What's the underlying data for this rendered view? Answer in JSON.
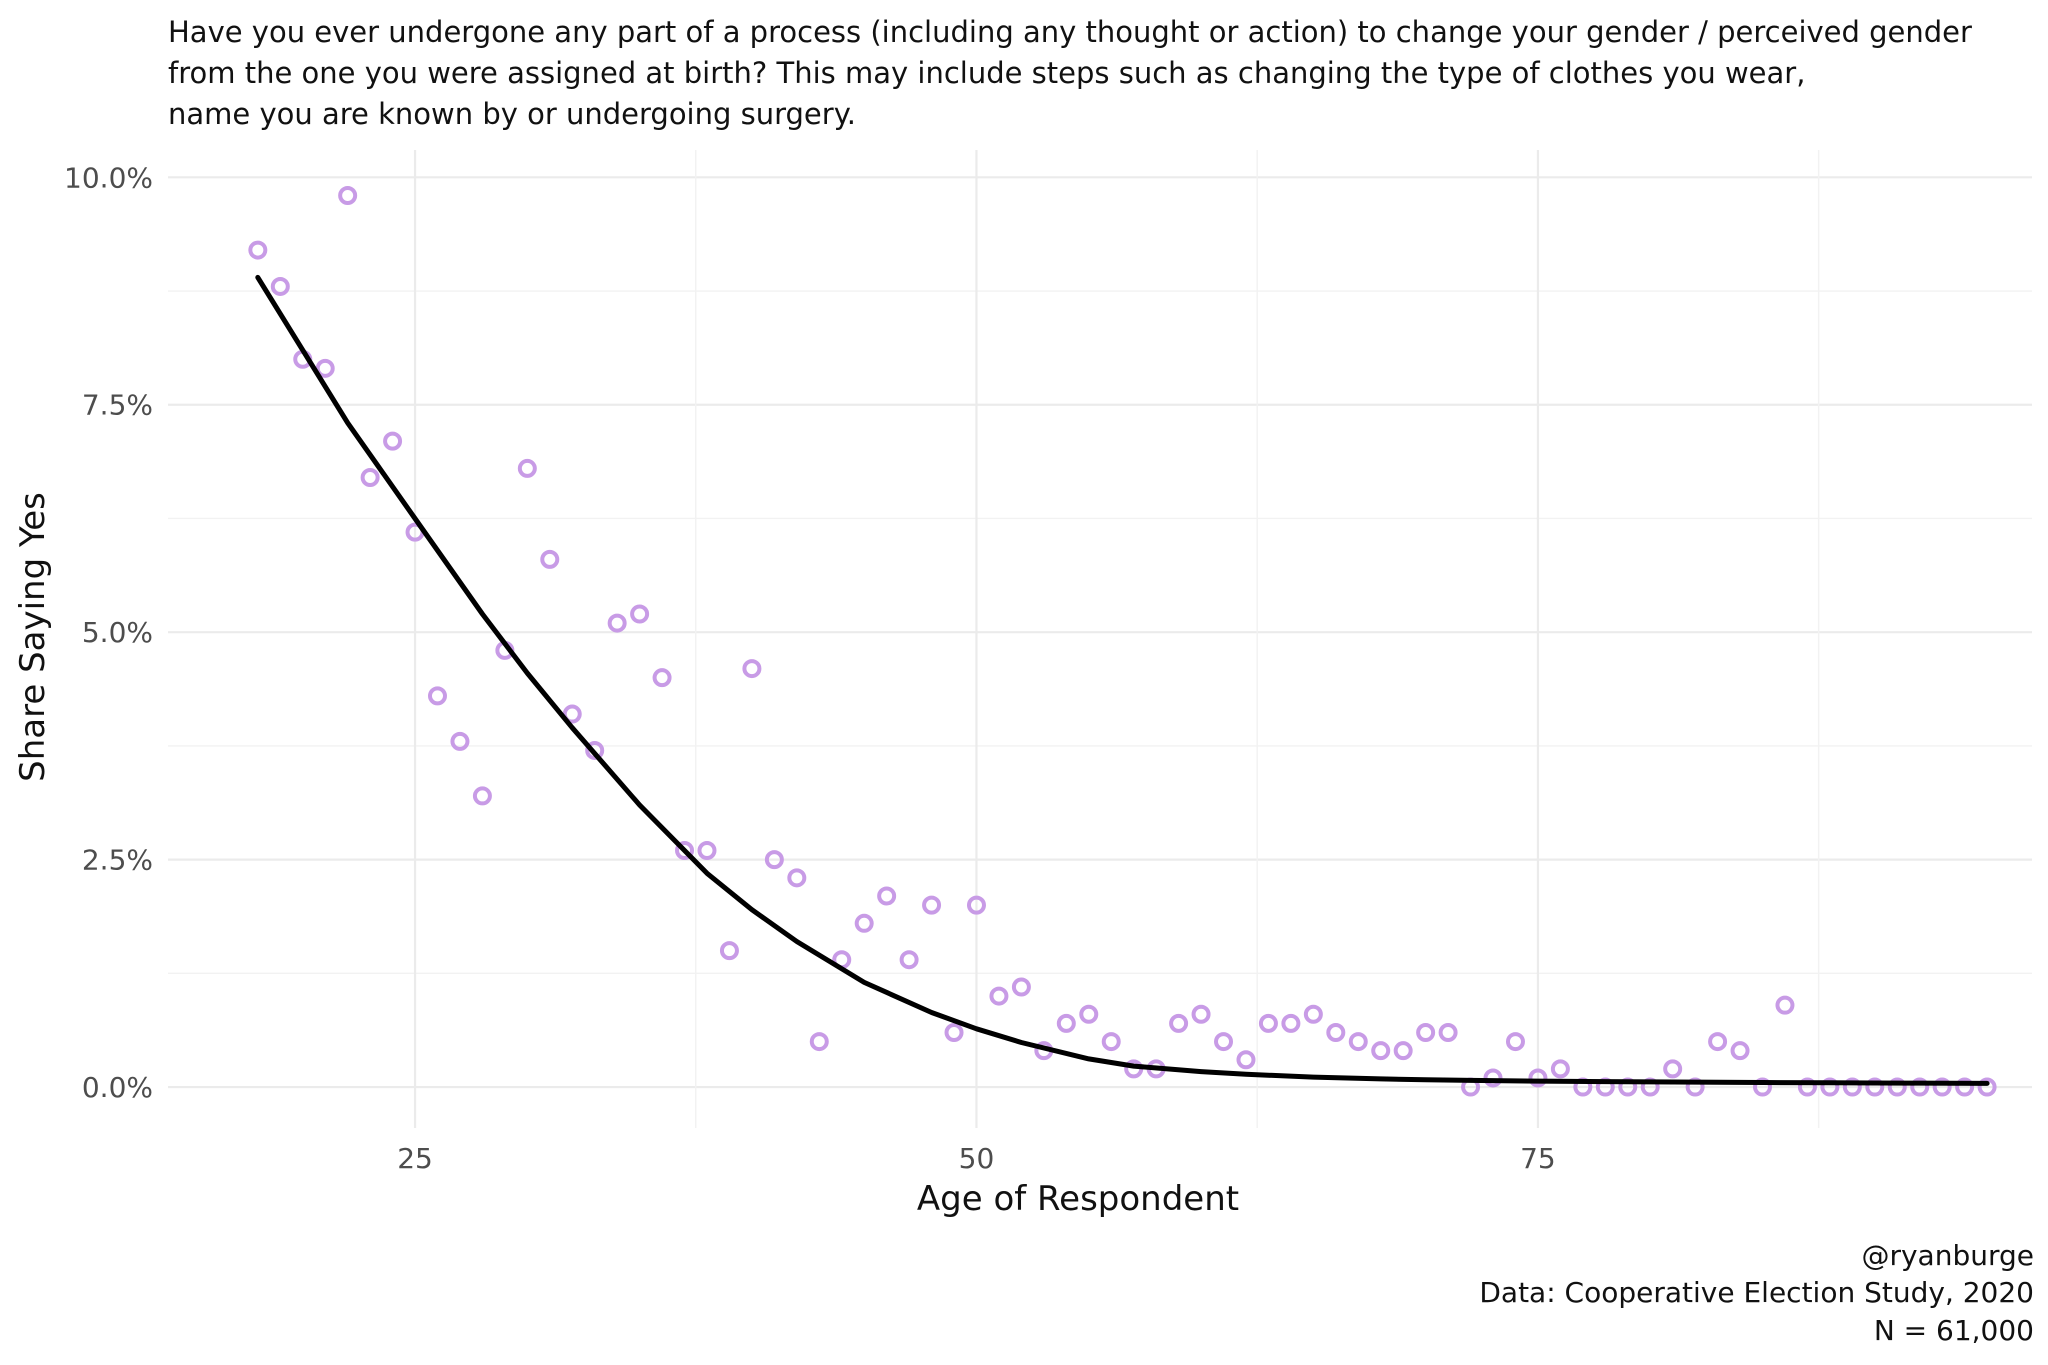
{
  "chart_data": {
    "type": "scatter",
    "title_lines": [
      "Have you ever undergone any part of a process (including any thought or action) to change your gender / perceived gender",
      "from the one you were assigned at birth? This may include steps such as changing the type of clothes you wear,",
      "name you are known by or undergoing surgery."
    ],
    "xlabel": "Age of Respondent",
    "ylabel": "Share Saying Yes",
    "x_ticks": [
      25,
      50,
      75
    ],
    "x_tick_labels": [
      "25",
      "50",
      "75"
    ],
    "y_ticks": [
      0,
      0.025,
      0.05,
      0.075,
      0.1
    ],
    "y_tick_labels": [
      "0.0%",
      "2.5%",
      "5.0%",
      "7.5%",
      "10.0%"
    ],
    "xlim": [
      14,
      97
    ],
    "ylim": [
      -0.0045,
      0.103
    ],
    "grid": true,
    "colors": {
      "points": "#c89be6",
      "trend": "#000000"
    },
    "points": {
      "x": [
        18,
        19,
        20,
        21,
        22,
        23,
        24,
        25,
        26,
        27,
        28,
        29,
        30,
        31,
        32,
        33,
        34,
        35,
        36,
        37,
        38,
        39,
        40,
        41,
        42,
        43,
        44,
        45,
        46,
        47,
        48,
        49,
        50,
        51,
        52,
        53,
        54,
        55,
        56,
        57,
        58,
        59,
        60,
        61,
        62,
        63,
        64,
        65,
        66,
        67,
        68,
        69,
        70,
        71,
        72,
        73,
        74,
        75,
        76,
        77,
        78,
        79,
        80,
        81,
        82,
        83,
        84,
        85,
        86,
        87,
        88,
        89,
        90,
        91,
        92,
        93,
        94,
        95
      ],
      "y": [
        0.092,
        0.088,
        0.08,
        0.079,
        0.098,
        0.067,
        0.071,
        0.061,
        0.043,
        0.038,
        0.032,
        0.048,
        0.068,
        0.058,
        0.041,
        0.037,
        0.051,
        0.052,
        0.045,
        0.026,
        0.026,
        0.015,
        0.046,
        0.025,
        0.023,
        0.005,
        0.014,
        0.018,
        0.021,
        0.014,
        0.02,
        0.006,
        0.02,
        0.01,
        0.011,
        0.004,
        0.007,
        0.008,
        0.005,
        0.002,
        0.002,
        0.007,
        0.008,
        0.005,
        0.003,
        0.007,
        0.007,
        0.008,
        0.006,
        0.005,
        0.004,
        0.004,
        0.006,
        0.006,
        0.0,
        0.001,
        0.005,
        0.001,
        0.002,
        0.0,
        0.0,
        0.0,
        0.0,
        0.002,
        0.0,
        0.005,
        0.004,
        0.0,
        0.009,
        0.0,
        0.0,
        0.0,
        0.0,
        0.0,
        0.0,
        0.0,
        0.0,
        0.0
      ]
    },
    "trend": {
      "x": [
        18,
        20,
        22,
        25,
        28,
        30,
        32,
        35,
        38,
        40,
        42,
        45,
        48,
        50,
        52,
        55,
        57,
        60,
        62,
        65,
        68,
        70,
        72,
        75,
        78,
        80,
        83,
        85,
        88,
        90,
        92,
        95
      ],
      "y": [
        0.089,
        0.081,
        0.073,
        0.0625,
        0.052,
        0.0455,
        0.0395,
        0.031,
        0.0235,
        0.0195,
        0.016,
        0.0115,
        0.0082,
        0.0064,
        0.0049,
        0.0031,
        0.0023,
        0.0017,
        0.0014,
        0.0011,
        0.0009,
        0.0008,
        0.00073,
        0.00066,
        0.0006,
        0.00057,
        0.00053,
        0.0005,
        0.00047,
        0.00045,
        0.00043,
        0.0004
      ]
    },
    "caption_lines": [
      "@ryanburge",
      "Data: Cooperative Election Study, 2020",
      "N = 61,000"
    ]
  }
}
